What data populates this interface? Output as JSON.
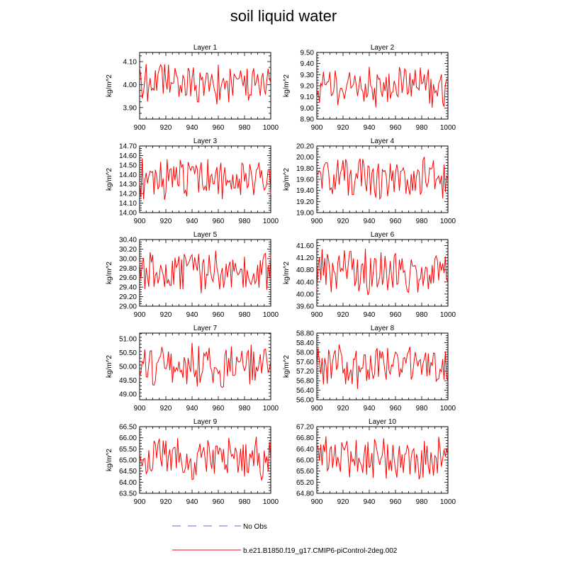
{
  "title": "soil liquid water",
  "colors": {
    "model": "#ff0000",
    "obs": "#9a9ae6",
    "axis": "#000000"
  },
  "legend": {
    "obs_label": "No Obs",
    "model_label": "b.e21.B1850.f19_g17.CMIP6-piControl-2deg.002"
  },
  "chart_data": [
    {
      "type": "line",
      "title": "Layer 1",
      "xlabel": "",
      "ylabel": "kg/m^2",
      "xlim": [
        900,
        1000
      ],
      "xticks": [
        900,
        920,
        940,
        960,
        980,
        1000
      ],
      "ylim": [
        3.85,
        4.14
      ],
      "yticks": [
        3.9,
        4.0,
        4.1
      ],
      "ydecimals": 2,
      "series": [
        {
          "name": "b.e21.B1850.f19_g17.CMIP6-piControl-2deg.002",
          "seed": 11
        }
      ]
    },
    {
      "type": "line",
      "title": "Layer 2",
      "xlabel": "",
      "ylabel": "kg/m^2",
      "xlim": [
        900,
        1000
      ],
      "xticks": [
        900,
        920,
        940,
        960,
        980,
        1000
      ],
      "ylim": [
        8.9,
        9.5
      ],
      "yticks": [
        8.9,
        9.0,
        9.1,
        9.2,
        9.3,
        9.4,
        9.5
      ],
      "ydecimals": 2,
      "series": [
        {
          "name": "b.e21.B1850.f19_g17.CMIP6-piControl-2deg.002",
          "seed": 12
        }
      ]
    },
    {
      "type": "line",
      "title": "Layer 3",
      "xlabel": "",
      "ylabel": "kg/m^2",
      "xlim": [
        900,
        1000
      ],
      "xticks": [
        900,
        920,
        940,
        960,
        980,
        1000
      ],
      "ylim": [
        14.0,
        14.7
      ],
      "yticks": [
        14.0,
        14.1,
        14.2,
        14.3,
        14.4,
        14.5,
        14.6,
        14.7
      ],
      "ydecimals": 2,
      "series": [
        {
          "name": "b.e21.B1850.f19_g17.CMIP6-piControl-2deg.002",
          "seed": 13
        }
      ]
    },
    {
      "type": "line",
      "title": "Layer 4",
      "xlabel": "",
      "ylabel": "kg/m^2",
      "xlim": [
        900,
        1000
      ],
      "xticks": [
        900,
        920,
        940,
        960,
        980,
        1000
      ],
      "ylim": [
        19.0,
        20.2
      ],
      "yticks": [
        19.0,
        19.2,
        19.4,
        19.6,
        19.8,
        20.0,
        20.2
      ],
      "ydecimals": 2,
      "series": [
        {
          "name": "b.e21.B1850.f19_g17.CMIP6-piControl-2deg.002",
          "seed": 14
        }
      ]
    },
    {
      "type": "line",
      "title": "Layer 5",
      "xlabel": "",
      "ylabel": "kg/m^2",
      "xlim": [
        900,
        1000
      ],
      "xticks": [
        900,
        920,
        940,
        960,
        980,
        1000
      ],
      "ylim": [
        29.0,
        30.4
      ],
      "yticks": [
        29.0,
        29.2,
        29.4,
        29.6,
        29.8,
        30.0,
        30.2,
        30.4
      ],
      "ydecimals": 2,
      "series": [
        {
          "name": "b.e21.B1850.f19_g17.CMIP6-piControl-2deg.002",
          "seed": 15
        }
      ]
    },
    {
      "type": "line",
      "title": "Layer 6",
      "xlabel": "",
      "ylabel": "kg/m^2",
      "xlim": [
        900,
        1000
      ],
      "xticks": [
        900,
        920,
        940,
        960,
        980,
        1000
      ],
      "ylim": [
        39.6,
        41.8
      ],
      "yticks": [
        39.6,
        40.0,
        40.4,
        40.8,
        41.2,
        41.6
      ],
      "ydecimals": 2,
      "series": [
        {
          "name": "b.e21.B1850.f19_g17.CMIP6-piControl-2deg.002",
          "seed": 16
        }
      ]
    },
    {
      "type": "line",
      "title": "Layer 7",
      "xlabel": "",
      "ylabel": "kg/m^2",
      "xlim": [
        900,
        1000
      ],
      "xticks": [
        900,
        920,
        940,
        960,
        980,
        1000
      ],
      "ylim": [
        48.8,
        51.2
      ],
      "yticks": [
        49.0,
        49.5,
        50.0,
        50.5,
        51.0
      ],
      "ydecimals": 2,
      "series": [
        {
          "name": "b.e21.B1850.f19_g17.CMIP6-piControl-2deg.002",
          "seed": 17
        }
      ]
    },
    {
      "type": "line",
      "title": "Layer 8",
      "xlabel": "",
      "ylabel": "kg/m^2",
      "xlim": [
        900,
        1000
      ],
      "xticks": [
        900,
        920,
        940,
        960,
        980,
        1000
      ],
      "ylim": [
        56.0,
        58.8
      ],
      "yticks": [
        56.0,
        56.4,
        56.8,
        57.2,
        57.6,
        58.0,
        58.4,
        58.8
      ],
      "ydecimals": 2,
      "series": [
        {
          "name": "b.e21.B1850.f19_g17.CMIP6-piControl-2deg.002",
          "seed": 18
        }
      ]
    },
    {
      "type": "line",
      "title": "Layer 9",
      "xlabel": "",
      "ylabel": "kg/m^2",
      "xlim": [
        900,
        1000
      ],
      "xticks": [
        900,
        920,
        940,
        960,
        980,
        1000
      ],
      "ylim": [
        63.5,
        66.5
      ],
      "yticks": [
        63.5,
        64.0,
        64.5,
        65.0,
        65.5,
        66.0,
        66.5
      ],
      "ydecimals": 2,
      "series": [
        {
          "name": "b.e21.B1850.f19_g17.CMIP6-piControl-2deg.002",
          "seed": 19
        }
      ]
    },
    {
      "type": "line",
      "title": "Layer 10",
      "xlabel": "",
      "ylabel": "",
      "xlim": [
        900,
        1000
      ],
      "xticks": [
        900,
        920,
        940,
        960,
        980,
        1000
      ],
      "ylim": [
        64.8,
        67.2
      ],
      "yticks": [
        64.8,
        65.2,
        65.6,
        66.0,
        66.4,
        66.8,
        67.2
      ],
      "ydecimals": 2,
      "series": [
        {
          "name": "b.e21.B1850.f19_g17.CMIP6-piControl-2deg.002",
          "seed": 20
        }
      ]
    }
  ]
}
